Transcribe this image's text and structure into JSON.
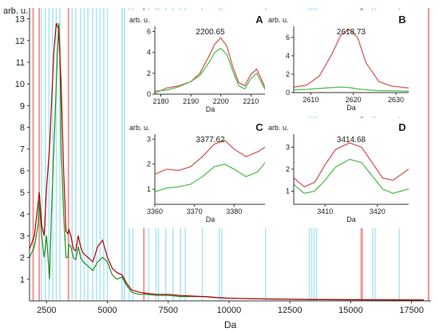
{
  "colors": {
    "red_trace": "#b00000",
    "red_band": "#f28a8a",
    "green_trace": "#1f8f1f",
    "cyan_band": "#9fdff2",
    "inset_red": "#d65a5a",
    "inset_green": "#55c055",
    "axis": "#333333"
  },
  "chart_data": [
    {
      "id": "main",
      "type": "line",
      "xlabel": "Da",
      "ylabel": "arb. u.",
      "xlim": [
        1800,
        18300
      ],
      "ylim": [
        0,
        13.5
      ],
      "xticks": [
        2500,
        5000,
        7500,
        10000,
        12500,
        15000,
        17500
      ],
      "yticks": [
        1,
        2,
        3,
        4,
        5,
        6,
        7,
        8,
        9,
        10,
        11,
        12,
        13
      ],
      "series": [
        {
          "color_key": "red_trace",
          "x": [
            1800,
            2000,
            2150,
            2200,
            2300,
            2400,
            2500,
            2620,
            2700,
            2800,
            2900,
            3000,
            3050,
            3100,
            3200,
            3300,
            3380,
            3410,
            3500,
            3600,
            3700,
            3800,
            3900,
            4000,
            4200,
            4400,
            4600,
            4800,
            5000,
            5200,
            5400,
            5600,
            5800,
            6000,
            6300,
            6600,
            7000,
            7500,
            8000,
            8500,
            9000,
            9500,
            10000,
            11000,
            12000,
            13000,
            14000,
            15000,
            16000,
            17000,
            18000
          ],
          "y": [
            2.4,
            3.0,
            4.5,
            5.0,
            3.5,
            3.0,
            5.2,
            7.0,
            9.0,
            11.5,
            12.8,
            12.5,
            11.2,
            10.0,
            6.0,
            3.2,
            3.1,
            3.3,
            3.0,
            2.4,
            2.3,
            3.0,
            2.5,
            2.2,
            2.0,
            1.8,
            2.5,
            2.8,
            2.0,
            1.5,
            1.3,
            1.2,
            0.8,
            0.5,
            0.4,
            0.35,
            0.3,
            0.3,
            0.25,
            0.22,
            0.2,
            0.15,
            0.12,
            0.1,
            0.08,
            0.07,
            0.06,
            0.05,
            0.05,
            0.04,
            0.04
          ]
        },
        {
          "color_key": "green_trace",
          "x": [
            1800,
            2000,
            2150,
            2200,
            2300,
            2400,
            2500,
            2620,
            2700,
            2800,
            2900,
            3000,
            3050,
            3100,
            3200,
            3300,
            3380,
            3410,
            3500,
            3600,
            3700,
            3800,
            3900,
            4000,
            4200,
            4400,
            4600,
            4800,
            5000,
            5200,
            5400,
            5600,
            5800,
            6000,
            6300,
            6600,
            7000,
            7500,
            8000,
            8500,
            9000,
            9500,
            10000,
            11000,
            12000,
            13000,
            14000,
            15000,
            16000,
            17000,
            18000
          ],
          "y": [
            2.0,
            2.5,
            3.5,
            4.6,
            3.0,
            2.0,
            3.0,
            1.0,
            4.0,
            7.0,
            10.0,
            12.8,
            11.5,
            7.0,
            4.0,
            2.0,
            2.0,
            2.6,
            2.5,
            2.0,
            1.9,
            2.5,
            2.0,
            1.8,
            1.6,
            1.4,
            1.8,
            2.0,
            1.8,
            1.2,
            1.0,
            1.1,
            0.7,
            0.4,
            0.3,
            0.3,
            0.25,
            0.25,
            0.2,
            0.2,
            0.2,
            0.15,
            0.12,
            0.1,
            0.08,
            0.07,
            0.06,
            0.06,
            0.05,
            0.05,
            0.04
          ]
        }
      ],
      "cyan_bands_x": [
        2300,
        2450,
        2600,
        2750,
        2900,
        3050,
        3550,
        3700,
        3900,
        4050,
        4200,
        4400,
        4550,
        4700,
        4850,
        5000,
        5600,
        5700,
        5900,
        6050,
        6700,
        7000,
        7100,
        7400,
        7700,
        8000,
        8200,
        8900,
        9600,
        9700,
        11500,
        13300,
        13400,
        13500,
        13600,
        15900,
        16000,
        17000
      ],
      "cyan_band_widths": [
        40,
        40,
        40,
        40,
        40,
        40,
        40,
        40,
        40,
        40,
        40,
        40,
        40,
        40,
        40,
        40,
        60,
        60,
        40,
        40,
        40,
        40,
        40,
        40,
        40,
        40,
        40,
        40,
        40,
        40,
        40,
        40,
        40,
        40,
        40,
        40,
        40,
        40
      ],
      "red_bands_x": [
        1950,
        2200,
        3400,
        6500,
        15450,
        18200
      ],
      "red_band_widths": [
        40,
        40,
        60,
        40,
        100,
        70
      ]
    },
    {
      "id": "A",
      "type": "line",
      "panel_label": "A",
      "peak_label": "2200.65",
      "xlabel": "Da",
      "ylabel": "arb. u.",
      "xlim": [
        2178,
        2215
      ],
      "ylim": [
        0,
        6.5
      ],
      "xticks": [
        2180,
        2190,
        2200,
        2210
      ],
      "yticks": [
        0,
        2,
        4,
        6
      ],
      "series": [
        {
          "color_key": "inset_red",
          "x": [
            2178,
            2182,
            2186,
            2190,
            2193,
            2196,
            2198,
            2200,
            2202,
            2204,
            2206,
            2208,
            2210,
            2212,
            2215
          ],
          "y": [
            0.1,
            0.6,
            0.8,
            1.2,
            2.0,
            3.6,
            4.8,
            5.4,
            4.6,
            2.6,
            1.1,
            0.8,
            1.9,
            2.4,
            0.5
          ]
        },
        {
          "color_key": "inset_green",
          "x": [
            2178,
            2182,
            2186,
            2190,
            2193,
            2196,
            2198,
            2200,
            2202,
            2204,
            2206,
            2208,
            2210,
            2212,
            2215
          ],
          "y": [
            0.3,
            0.4,
            0.7,
            1.2,
            1.8,
            3.0,
            4.0,
            4.4,
            3.8,
            2.2,
            0.8,
            0.5,
            1.5,
            2.0,
            0.3
          ]
        }
      ]
    },
    {
      "id": "B",
      "type": "line",
      "panel_label": "B",
      "peak_label": "2618.73",
      "xlabel": "Da",
      "ylabel": "arb. u.",
      "xlim": [
        2606,
        2633
      ],
      "ylim": [
        0,
        7.2
      ],
      "xticks": [
        2610,
        2620,
        2630
      ],
      "yticks": [
        0,
        2,
        4,
        6
      ],
      "series": [
        {
          "color_key": "inset_red",
          "x": [
            2606,
            2609,
            2612,
            2615,
            2617,
            2619,
            2621,
            2623,
            2626,
            2629,
            2633
          ],
          "y": [
            0.6,
            0.8,
            1.8,
            4.2,
            6.2,
            6.9,
            6.0,
            3.2,
            1.2,
            0.7,
            0.5
          ]
        },
        {
          "color_key": "inset_green",
          "x": [
            2606,
            2609,
            2612,
            2615,
            2617,
            2619,
            2621,
            2623,
            2626,
            2629,
            2633
          ],
          "y": [
            0.3,
            0.35,
            0.45,
            0.55,
            0.6,
            0.55,
            0.4,
            0.3,
            0.2,
            0.2,
            0.15
          ]
        }
      ]
    },
    {
      "id": "C",
      "type": "line",
      "panel_label": "C",
      "peak_label": "3377.62",
      "xlabel": "Da",
      "ylabel": "arb. u.",
      "xlim": [
        3360,
        3388
      ],
      "ylim": [
        0.4,
        3.2
      ],
      "xticks": [
        3360,
        3370,
        3380
      ],
      "yticks": [
        1,
        2,
        3
      ],
      "series": [
        {
          "color_key": "inset_red",
          "x": [
            3360,
            3363,
            3366,
            3369,
            3372,
            3375,
            3377.6,
            3380,
            3383,
            3386,
            3388
          ],
          "y": [
            1.6,
            1.8,
            1.75,
            1.9,
            2.3,
            2.8,
            2.95,
            2.6,
            2.3,
            2.5,
            2.7
          ]
        },
        {
          "color_key": "inset_green",
          "x": [
            3360,
            3363,
            3366,
            3369,
            3372,
            3375,
            3377.6,
            3380,
            3383,
            3386,
            3388
          ],
          "y": [
            0.9,
            1.05,
            1.1,
            1.2,
            1.5,
            1.9,
            2.0,
            1.8,
            1.5,
            1.7,
            2.1
          ]
        }
      ]
    },
    {
      "id": "D",
      "type": "line",
      "panel_label": "D",
      "peak_label": "3414.68",
      "xlabel": "Da",
      "ylabel": "arb. u.",
      "xlim": [
        3404,
        3426
      ],
      "ylim": [
        0.4,
        3.6
      ],
      "xticks": [
        3410,
        3420
      ],
      "yticks": [
        1,
        2,
        3
      ],
      "series": [
        {
          "color_key": "inset_red",
          "x": [
            3404,
            3406,
            3408,
            3410,
            3412,
            3414.7,
            3417,
            3419,
            3421,
            3423,
            3426
          ],
          "y": [
            1.6,
            1.2,
            1.4,
            2.2,
            2.9,
            3.2,
            3.0,
            2.3,
            1.6,
            1.5,
            2.0
          ]
        },
        {
          "color_key": "inset_green",
          "x": [
            3404,
            3406,
            3408,
            3410,
            3412,
            3414.7,
            3417,
            3419,
            3421,
            3423,
            3426
          ],
          "y": [
            1.3,
            0.9,
            1.0,
            1.5,
            2.1,
            2.45,
            2.3,
            1.7,
            1.1,
            0.9,
            1.1
          ]
        }
      ]
    }
  ]
}
